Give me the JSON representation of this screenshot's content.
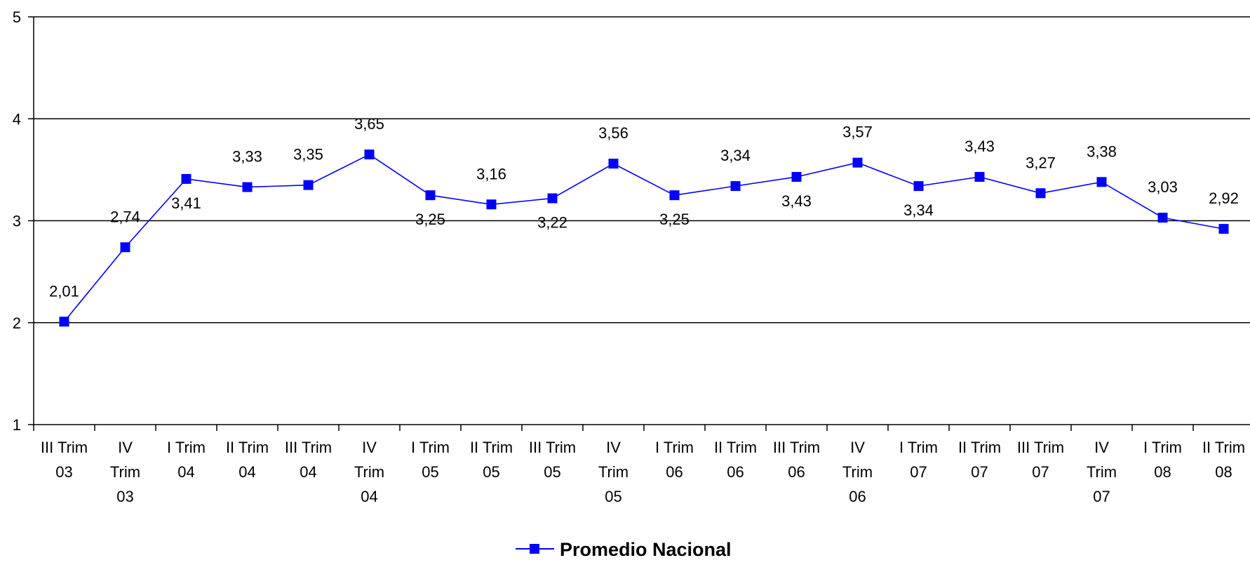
{
  "chart_data": {
    "type": "line",
    "categories": [
      [
        "III Trim",
        "03"
      ],
      [
        "IV",
        "Trim",
        "03"
      ],
      [
        "I Trim",
        "04"
      ],
      [
        "II Trim",
        "04"
      ],
      [
        "III Trim",
        "04"
      ],
      [
        "IV",
        "Trim",
        "04"
      ],
      [
        "I Trim",
        "05"
      ],
      [
        "II Trim",
        "05"
      ],
      [
        "III Trim",
        "05"
      ],
      [
        "IV",
        "Trim",
        "05"
      ],
      [
        "I Trim",
        "06"
      ],
      [
        "II Trim",
        "06"
      ],
      [
        "III Trim",
        "06"
      ],
      [
        "IV",
        "Trim",
        "06"
      ],
      [
        "I Trim",
        "07"
      ],
      [
        "II Trim",
        "07"
      ],
      [
        "III Trim",
        "07"
      ],
      [
        "IV",
        "Trim",
        "07"
      ],
      [
        "I Trim",
        "08"
      ],
      [
        "II Trim",
        "08"
      ]
    ],
    "series": [
      {
        "name": "Promedio Nacional",
        "values": [
          2.01,
          2.74,
          3.41,
          3.33,
          3.35,
          3.65,
          3.25,
          3.16,
          3.22,
          3.56,
          3.25,
          3.34,
          3.43,
          3.57,
          3.34,
          3.43,
          3.27,
          3.38,
          3.03,
          2.92
        ],
        "labels": [
          "2,01",
          "2,74",
          "3,41",
          "3,33",
          "3,35",
          "3,65",
          "3,25",
          "3,16",
          "3,22",
          "3,56",
          "3,25",
          "3,34",
          "3,43",
          "3,57",
          "3,34",
          "3,43",
          "3,27",
          "3,38",
          "3,03",
          "2,92"
        ],
        "label_position": [
          "above",
          "above",
          "below",
          "above",
          "above",
          "above",
          "below",
          "above",
          "below",
          "above",
          "below",
          "above",
          "below",
          "above",
          "below",
          "above",
          "above",
          "above",
          "above",
          "above"
        ],
        "color": "#0000ff"
      }
    ],
    "ylim": [
      1,
      5
    ],
    "yticks": [
      "1",
      "2",
      "3",
      "4",
      "5"
    ],
    "grid": true,
    "legend": "bottom-center",
    "title": "",
    "xlabel": "",
    "ylabel": ""
  }
}
